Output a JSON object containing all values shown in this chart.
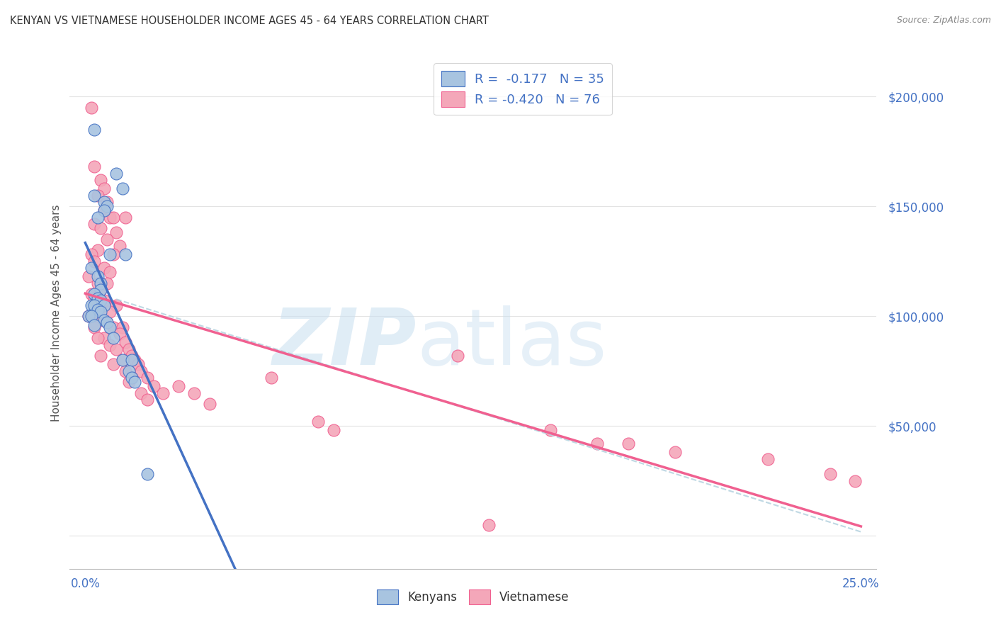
{
  "title": "KENYAN VS VIETNAMESE HOUSEHOLDER INCOME AGES 45 - 64 YEARS CORRELATION CHART",
  "source": "Source: ZipAtlas.com",
  "ylabel": "Householder Income Ages 45 - 64 years",
  "kenyan_color": "#a8c4e0",
  "vietnamese_color": "#f4a7b9",
  "kenyan_line_color": "#4472c4",
  "vietnamese_line_color": "#f06090",
  "trendline_color": "#b8d4e0",
  "background_color": "#ffffff",
  "grid_color": "#e0e0e0",
  "title_color": "#333333",
  "tick_color": "#4472c4",
  "kenyan_points": [
    [
      0.003,
      185000
    ],
    [
      0.01,
      165000
    ],
    [
      0.012,
      158000
    ],
    [
      0.003,
      155000
    ],
    [
      0.006,
      152000
    ],
    [
      0.007,
      150000
    ],
    [
      0.006,
      148000
    ],
    [
      0.004,
      145000
    ],
    [
      0.008,
      128000
    ],
    [
      0.002,
      122000
    ],
    [
      0.004,
      118000
    ],
    [
      0.005,
      115000
    ],
    [
      0.005,
      112000
    ],
    [
      0.013,
      128000
    ],
    [
      0.003,
      110000
    ],
    [
      0.004,
      108000
    ],
    [
      0.005,
      107000
    ],
    [
      0.002,
      105000
    ],
    [
      0.003,
      105000
    ],
    [
      0.006,
      105000
    ],
    [
      0.004,
      103000
    ],
    [
      0.005,
      102000
    ],
    [
      0.001,
      100000
    ],
    [
      0.002,
      100000
    ],
    [
      0.006,
      98000
    ],
    [
      0.007,
      97000
    ],
    [
      0.003,
      96000
    ],
    [
      0.008,
      95000
    ],
    [
      0.009,
      90000
    ],
    [
      0.012,
      80000
    ],
    [
      0.015,
      80000
    ],
    [
      0.014,
      75000
    ],
    [
      0.015,
      72000
    ],
    [
      0.016,
      70000
    ],
    [
      0.02,
      28000
    ]
  ],
  "vietnamese_points": [
    [
      0.002,
      195000
    ],
    [
      0.003,
      168000
    ],
    [
      0.005,
      162000
    ],
    [
      0.006,
      158000
    ],
    [
      0.004,
      155000
    ],
    [
      0.007,
      152000
    ],
    [
      0.006,
      148000
    ],
    [
      0.008,
      145000
    ],
    [
      0.003,
      142000
    ],
    [
      0.009,
      145000
    ],
    [
      0.005,
      140000
    ],
    [
      0.01,
      138000
    ],
    [
      0.007,
      135000
    ],
    [
      0.011,
      132000
    ],
    [
      0.004,
      130000
    ],
    [
      0.009,
      128000
    ],
    [
      0.002,
      128000
    ],
    [
      0.013,
      145000
    ],
    [
      0.003,
      125000
    ],
    [
      0.006,
      122000
    ],
    [
      0.008,
      120000
    ],
    [
      0.001,
      118000
    ],
    [
      0.004,
      115000
    ],
    [
      0.007,
      115000
    ],
    [
      0.005,
      112000
    ],
    [
      0.002,
      110000
    ],
    [
      0.003,
      108000
    ],
    [
      0.006,
      107000
    ],
    [
      0.01,
      105000
    ],
    [
      0.004,
      105000
    ],
    [
      0.008,
      102000
    ],
    [
      0.001,
      100000
    ],
    [
      0.002,
      100000
    ],
    [
      0.005,
      98000
    ],
    [
      0.007,
      97000
    ],
    [
      0.009,
      95000
    ],
    [
      0.012,
      95000
    ],
    [
      0.003,
      95000
    ],
    [
      0.011,
      92000
    ],
    [
      0.006,
      90000
    ],
    [
      0.004,
      90000
    ],
    [
      0.013,
      88000
    ],
    [
      0.008,
      87000
    ],
    [
      0.014,
      85000
    ],
    [
      0.01,
      85000
    ],
    [
      0.015,
      82000
    ],
    [
      0.005,
      82000
    ],
    [
      0.016,
      80000
    ],
    [
      0.012,
      80000
    ],
    [
      0.017,
      78000
    ],
    [
      0.009,
      78000
    ],
    [
      0.018,
      75000
    ],
    [
      0.013,
      75000
    ],
    [
      0.02,
      72000
    ],
    [
      0.015,
      72000
    ],
    [
      0.022,
      68000
    ],
    [
      0.014,
      70000
    ],
    [
      0.025,
      65000
    ],
    [
      0.018,
      65000
    ],
    [
      0.12,
      82000
    ],
    [
      0.02,
      62000
    ],
    [
      0.03,
      68000
    ],
    [
      0.035,
      65000
    ],
    [
      0.04,
      60000
    ],
    [
      0.06,
      72000
    ],
    [
      0.075,
      52000
    ],
    [
      0.08,
      48000
    ],
    [
      0.15,
      48000
    ],
    [
      0.165,
      42000
    ],
    [
      0.175,
      42000
    ],
    [
      0.19,
      38000
    ],
    [
      0.22,
      35000
    ],
    [
      0.13,
      5000
    ],
    [
      0.24,
      28000
    ],
    [
      0.248,
      25000
    ]
  ]
}
